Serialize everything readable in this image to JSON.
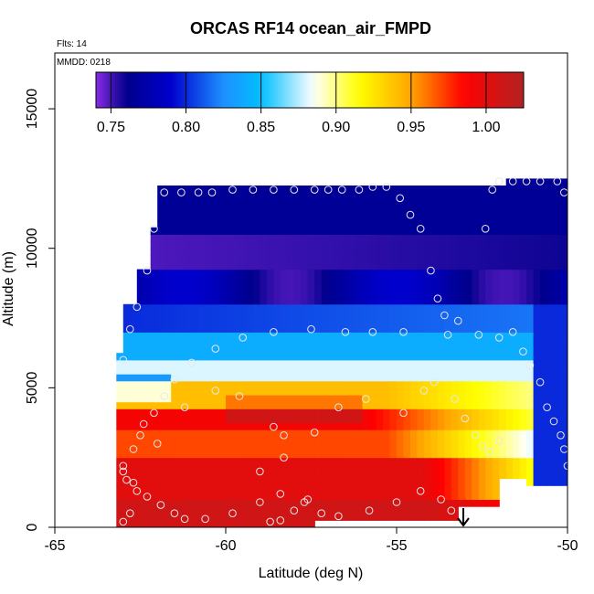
{
  "chart_data": {
    "type": "heatmap",
    "title": "ORCAS RF14 ocean_air_FMPD",
    "subtitle_flights": "Flts: 14",
    "subtitle_date": "MMDD: 0218",
    "xlabel": "Latitude (deg N)",
    "ylabel": "Altitude (m)",
    "xlim": [
      -65,
      -50
    ],
    "ylim": [
      0,
      17000
    ],
    "x_ticks": [
      -65,
      -60,
      -55,
      -50
    ],
    "x_tick_labels": [
      "-65",
      "-60",
      "-55",
      "-50"
    ],
    "y_ticks": [
      0,
      5000,
      10000,
      15000
    ],
    "y_tick_labels": [
      "0",
      "5000",
      "10000",
      "15000"
    ],
    "colorbar": {
      "range": [
        0.74,
        1.025
      ],
      "ticks": [
        0.75,
        0.8,
        0.85,
        0.9,
        0.95,
        1.0
      ],
      "tick_labels": [
        "0.75",
        "0.80",
        "0.85",
        "0.90",
        "0.95",
        "1.00"
      ],
      "colors": [
        "#8A2BE2",
        "#00008B",
        "#0000CD",
        "#1E90FF",
        "#00BFFF",
        "#FFFFFF",
        "#FFFF00",
        "#FFA500",
        "#FF0000",
        "#B22222"
      ]
    },
    "field": {
      "description": "interpolated FMPD curtain vs latitude and altitude",
      "lat_range": [
        -63.2,
        -50
      ],
      "alt_range": [
        0,
        12500
      ]
    },
    "flight_track_points": [
      [
        -63.0,
        200
      ],
      [
        -62.8,
        500
      ],
      [
        -62.6,
        1300
      ],
      [
        -62.9,
        1700
      ],
      [
        -63.0,
        2200
      ],
      [
        -62.7,
        2800
      ],
      [
        -62.5,
        3300
      ],
      [
        -62.4,
        3700
      ],
      [
        -62.1,
        4100
      ],
      [
        -61.8,
        4700
      ],
      [
        -61.5,
        5300
      ],
      [
        -61.0,
        5900
      ],
      [
        -60.3,
        6400
      ],
      [
        -59.5,
        6800
      ],
      [
        -58.6,
        7000
      ],
      [
        -57.5,
        7100
      ],
      [
        -56.5,
        7000
      ],
      [
        -55.7,
        7000
      ],
      [
        -54.8,
        7000
      ],
      [
        -53.5,
        6900
      ],
      [
        -52.6,
        6900
      ],
      [
        -52.0,
        6800
      ],
      [
        -51.6,
        7000
      ],
      [
        -51.3,
        6300
      ],
      [
        -51.1,
        5800
      ],
      [
        -50.8,
        5200
      ],
      [
        -50.6,
        4300
      ],
      [
        -50.4,
        3800
      ],
      [
        -50.2,
        3300
      ],
      [
        -50.1,
        2800
      ],
      [
        -50.0,
        2200
      ],
      [
        -63.0,
        6000
      ],
      [
        -62.8,
        7100
      ],
      [
        -62.6,
        7900
      ],
      [
        -62.3,
        9200
      ],
      [
        -62.1,
        10700
      ],
      [
        -61.8,
        12000
      ],
      [
        -61.3,
        12000
      ],
      [
        -60.8,
        12000
      ],
      [
        -60.4,
        12000
      ],
      [
        -59.8,
        12100
      ],
      [
        -59.2,
        12100
      ],
      [
        -58.6,
        12100
      ],
      [
        -58.0,
        12100
      ],
      [
        -57.4,
        12100
      ],
      [
        -57.0,
        12100
      ],
      [
        -56.6,
        12100
      ],
      [
        -56.1,
        12100
      ],
      [
        -55.7,
        12200
      ],
      [
        -55.3,
        12200
      ],
      [
        -54.9,
        11800
      ],
      [
        -54.6,
        11200
      ],
      [
        -54.3,
        10700
      ],
      [
        -54.0,
        9200
      ],
      [
        -53.8,
        8200
      ],
      [
        -53.6,
        7600
      ],
      [
        -53.2,
        7400
      ],
      [
        -52.4,
        10700
      ],
      [
        -52.2,
        12100
      ],
      [
        -52.0,
        12400
      ],
      [
        -51.6,
        12400
      ],
      [
        -51.2,
        12400
      ],
      [
        -50.8,
        12400
      ],
      [
        -50.3,
        12400
      ],
      [
        -50.1,
        12000
      ],
      [
        -62.0,
        3000
      ],
      [
        -61.2,
        4300
      ],
      [
        -60.3,
        4900
      ],
      [
        -59.6,
        4700
      ],
      [
        -58.6,
        3600
      ],
      [
        -58.3,
        3300
      ],
      [
        -57.4,
        3400
      ],
      [
        -56.7,
        4300
      ],
      [
        -55.9,
        4600
      ],
      [
        -54.8,
        4100
      ],
      [
        -54.2,
        4900
      ],
      [
        -53.9,
        5200
      ],
      [
        -53.3,
        4600
      ],
      [
        -53.0,
        3900
      ],
      [
        -52.7,
        3300
      ],
      [
        -52.5,
        2900
      ],
      [
        -52.3,
        2700
      ],
      [
        -52.0,
        3100
      ],
      [
        -63.0,
        2000
      ],
      [
        -62.7,
        1600
      ],
      [
        -62.3,
        1100
      ],
      [
        -61.9,
        800
      ],
      [
        -61.5,
        500
      ],
      [
        -61.2,
        300
      ],
      [
        -60.6,
        300
      ],
      [
        -59.8,
        500
      ],
      [
        -59.0,
        900
      ],
      [
        -58.4,
        1200
      ],
      [
        -57.7,
        900
      ],
      [
        -57.2,
        500
      ],
      [
        -56.7,
        400
      ],
      [
        -55.8,
        600
      ],
      [
        -55.0,
        900
      ],
      [
        -54.3,
        1300
      ],
      [
        -53.7,
        1000
      ],
      [
        -53.4,
        600
      ],
      [
        -53.0,
        300
      ],
      [
        -58.7,
        200
      ],
      [
        -58.4,
        250
      ],
      [
        -58.0,
        600
      ],
      [
        -57.6,
        1000
      ],
      [
        -59.0,
        2000
      ],
      [
        -58.3,
        2500
      ]
    ],
    "annotation": "arrow pointing down near -53 deg N at 0 m"
  }
}
